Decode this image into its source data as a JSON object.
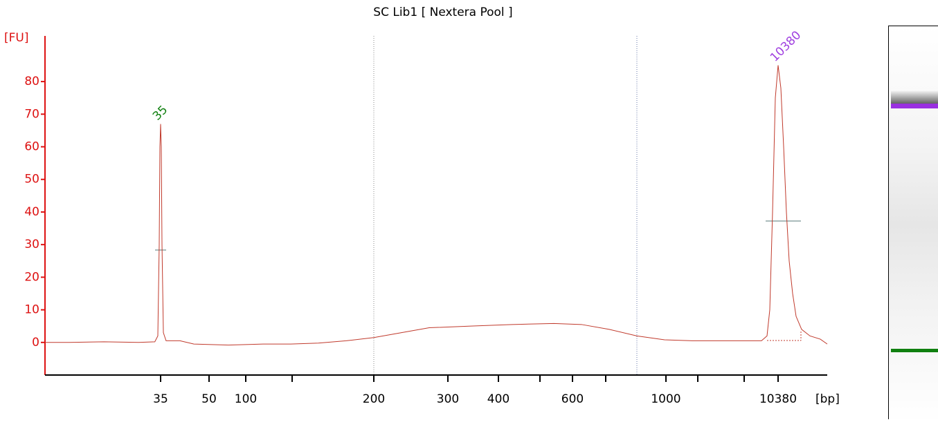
{
  "chart_data": {
    "type": "line",
    "title": "SC Lib1  [ Nextera Pool ]",
    "y_label": "[FU]",
    "x_label": "[bp]",
    "axis_color": "#dd1111",
    "line_color": "#c0392b",
    "xlim": [
      25,
      15000
    ],
    "xticks": [
      35,
      50,
      100,
      {
        "value": 150,
        "label": null
      },
      200,
      300,
      400,
      {
        "value": 500,
        "label": null
      },
      600,
      {
        "value": 700,
        "label": null
      },
      1000,
      {
        "value": 2000,
        "label": null
      },
      {
        "value": 7000,
        "label": null
      },
      10380
    ],
    "ylim": [
      -10,
      94
    ],
    "yticks": [
      0,
      10,
      20,
      30,
      40,
      50,
      60,
      70,
      80
    ],
    "x": [
      25,
      27.1,
      30.1,
      33.1,
      34.5,
      34.76,
      34.88,
      34.94,
      35,
      35.21,
      35.43,
      35.86,
      36.7,
      41.0,
      45.3,
      76.4,
      118.7,
      148.5,
      166.1,
      183.1,
      200,
      237.4,
      274.8,
      345.2,
      433.3,
      542.6,
      627.1,
      717.2,
      855.2,
      993.1,
      1826,
      5134,
      8724,
      9276,
      9552,
      9828,
      10104,
      10380,
      10640,
      10901,
      11161,
      11421,
      11746,
      12072,
      12592,
      13373,
      14349,
      15000
    ],
    "values": [
      0,
      0,
      0.2,
      0,
      0.2,
      2,
      30,
      60,
      67,
      60,
      30,
      3,
      0.5,
      0.5,
      -0.5,
      -0.8,
      -0.5,
      -0.5,
      -0.2,
      0.5,
      1.5,
      3,
      4.5,
      5,
      5.5,
      5.8,
      5.5,
      4,
      2,
      0.8,
      0.5,
      0.5,
      0.5,
      2,
      10,
      40,
      75,
      85,
      78,
      60,
      40,
      25,
      15,
      8,
      4,
      2,
      1,
      -0.5
    ],
    "annotations": [
      {
        "text": "35",
        "x": 35,
        "y": 67,
        "color": "#108010"
      },
      {
        "text": "10380",
        "x": 10380,
        "y": 85,
        "color": "#a040e0"
      }
    ]
  }
}
